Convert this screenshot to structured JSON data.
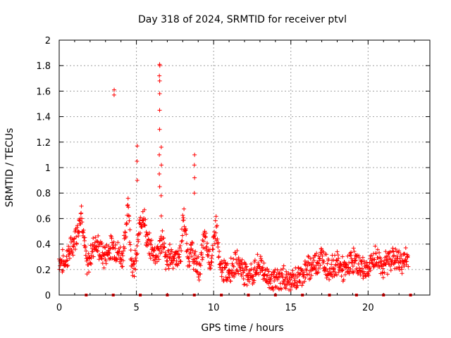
{
  "chart_data": {
    "type": "scatter",
    "title": "Day 318 of 2024, SRMTID for receiver ptvl",
    "xlabel": "GPS time / hours",
    "ylabel": "SRMTID / TECUs",
    "xlim": [
      0,
      24
    ],
    "ylim": [
      0,
      2
    ],
    "xticks": [
      0,
      5,
      10,
      15,
      20
    ],
    "yticks": [
      0,
      0.2,
      0.4,
      0.6,
      0.8,
      1,
      1.2,
      1.4,
      1.6,
      1.8,
      2
    ],
    "ytick_labels": [
      "0",
      "0.2",
      "0.4",
      "0.6",
      "0.8",
      "1",
      "1.2",
      "1.4",
      "1.6",
      "1.8",
      "2"
    ],
    "grid": true,
    "marker": "+",
    "color": "#ff0000",
    "trend": [
      [
        0.0,
        0.28
      ],
      [
        0.3,
        0.25
      ],
      [
        0.6,
        0.32
      ],
      [
        0.9,
        0.4
      ],
      [
        1.2,
        0.52
      ],
      [
        1.45,
        0.66
      ],
      [
        1.6,
        0.45
      ],
      [
        1.8,
        0.2
      ],
      [
        2.0,
        0.3
      ],
      [
        2.3,
        0.42
      ],
      [
        2.6,
        0.36
      ],
      [
        2.9,
        0.3
      ],
      [
        3.2,
        0.36
      ],
      [
        3.5,
        0.38
      ],
      [
        3.8,
        0.34
      ],
      [
        4.1,
        0.3
      ],
      [
        4.3,
        0.45
      ],
      [
        4.45,
        0.78
      ],
      [
        4.6,
        0.4
      ],
      [
        4.8,
        0.18
      ],
      [
        5.0,
        0.3
      ],
      [
        5.2,
        0.52
      ],
      [
        5.45,
        0.66
      ],
      [
        5.7,
        0.4
      ],
      [
        6.0,
        0.36
      ],
      [
        6.3,
        0.32
      ],
      [
        6.5,
        0.36
      ],
      [
        6.7,
        0.45
      ],
      [
        6.9,
        0.25
      ],
      [
        7.2,
        0.32
      ],
      [
        7.6,
        0.28
      ],
      [
        7.9,
        0.34
      ],
      [
        8.05,
        0.65
      ],
      [
        8.3,
        0.3
      ],
      [
        8.6,
        0.34
      ],
      [
        8.8,
        0.25
      ],
      [
        9.1,
        0.2
      ],
      [
        9.4,
        0.45
      ],
      [
        9.7,
        0.3
      ],
      [
        9.9,
        0.28
      ],
      [
        10.15,
        0.58
      ],
      [
        10.4,
        0.2
      ],
      [
        10.8,
        0.18
      ],
      [
        11.2,
        0.22
      ],
      [
        11.6,
        0.26
      ],
      [
        12.0,
        0.18
      ],
      [
        12.5,
        0.16
      ],
      [
        13.0,
        0.24
      ],
      [
        13.5,
        0.14
      ],
      [
        14.0,
        0.1
      ],
      [
        14.5,
        0.14
      ],
      [
        15.0,
        0.1
      ],
      [
        15.5,
        0.14
      ],
      [
        16.0,
        0.2
      ],
      [
        16.5,
        0.24
      ],
      [
        17.0,
        0.3
      ],
      [
        17.5,
        0.2
      ],
      [
        18.0,
        0.25
      ],
      [
        18.5,
        0.18
      ],
      [
        19.0,
        0.28
      ],
      [
        19.5,
        0.22
      ],
      [
        20.0,
        0.2
      ],
      [
        20.5,
        0.3
      ],
      [
        21.0,
        0.22
      ],
      [
        21.5,
        0.3
      ],
      [
        22.0,
        0.26
      ],
      [
        22.6,
        0.28
      ]
    ],
    "spikes": [
      {
        "x": 3.55,
        "values": [
          1.57,
          1.61
        ]
      },
      {
        "x": 5.05,
        "values": [
          0.9,
          1.05,
          1.17
        ]
      },
      {
        "x": 6.5,
        "values": [
          0.85,
          0.95,
          1.1,
          1.3,
          1.45,
          1.58,
          1.68,
          1.72,
          1.8,
          1.81
        ]
      },
      {
        "x": 6.62,
        "values": [
          0.62,
          0.78,
          1.02,
          1.16
        ]
      },
      {
        "x": 8.75,
        "values": [
          0.8,
          0.92,
          1.02,
          1.1
        ]
      }
    ],
    "zero_markers": [
      1.75,
      3.5,
      5.25,
      7.0,
      8.75,
      10.5,
      12.25,
      14.0,
      15.75,
      17.5,
      19.25,
      21.0,
      22.75
    ]
  }
}
